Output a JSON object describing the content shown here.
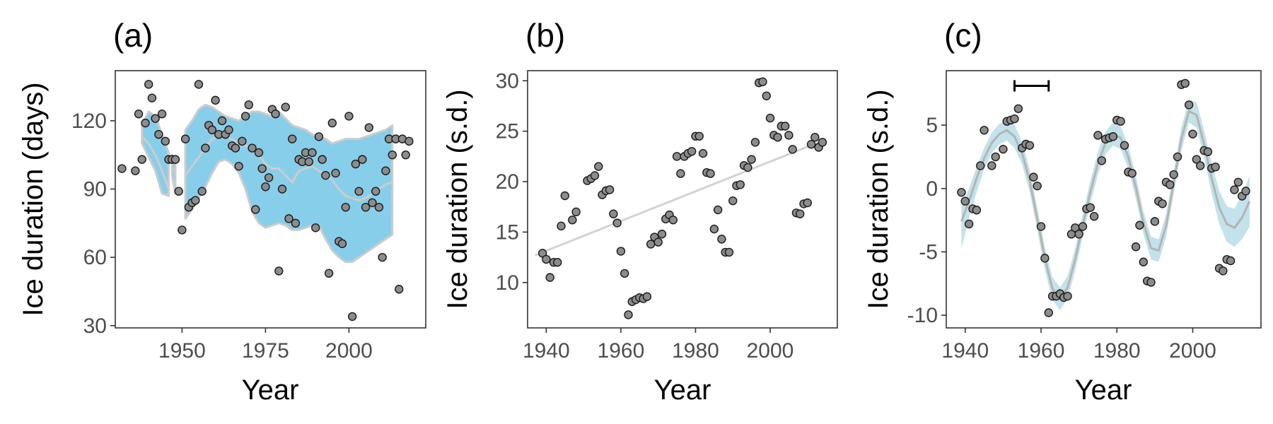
{
  "chart_data": [
    {
      "type": "scatter",
      "panel_label": "(a)",
      "xlabel": "Year",
      "ylabel": "Ice duration (days)",
      "xlim": [
        1930,
        2023
      ],
      "ylim": [
        29,
        142
      ],
      "x_ticks": [
        1950,
        1975,
        2000
      ],
      "y_ticks": [
        30,
        60,
        90,
        120
      ],
      "grid": false,
      "colors": {
        "points": "#8c8c8c",
        "band": "#87ceeb",
        "line": "#cccccc"
      },
      "points": [
        [
          1932,
          99
        ],
        [
          1936,
          98
        ],
        [
          1937,
          123
        ],
        [
          1938,
          103
        ],
        [
          1939,
          119
        ],
        [
          1940,
          136
        ],
        [
          1941,
          130
        ],
        [
          1942,
          121
        ],
        [
          1943,
          114
        ],
        [
          1944,
          123
        ],
        [
          1945,
          111
        ],
        [
          1946,
          103
        ],
        [
          1947,
          103
        ],
        [
          1948,
          103
        ],
        [
          1949,
          89
        ],
        [
          1950,
          72
        ],
        [
          1951,
          112
        ],
        [
          1952,
          82
        ],
        [
          1953,
          84
        ],
        [
          1954,
          85
        ],
        [
          1955,
          136
        ],
        [
          1956,
          89
        ],
        [
          1957,
          108
        ],
        [
          1958,
          118
        ],
        [
          1959,
          116
        ],
        [
          1960,
          129
        ],
        [
          1961,
          114
        ],
        [
          1962,
          120
        ],
        [
          1963,
          114
        ],
        [
          1964,
          116
        ],
        [
          1965,
          109
        ],
        [
          1966,
          108
        ],
        [
          1967,
          100
        ],
        [
          1968,
          111
        ],
        [
          1969,
          122
        ],
        [
          1970,
          127
        ],
        [
          1971,
          108
        ],
        [
          1972,
          81
        ],
        [
          1973,
          106
        ],
        [
          1974,
          99
        ],
        [
          1975,
          91
        ],
        [
          1976,
          95
        ],
        [
          1977,
          125
        ],
        [
          1978,
          123
        ],
        [
          1979,
          54
        ],
        [
          1980,
          90
        ],
        [
          1981,
          126
        ],
        [
          1982,
          77
        ],
        [
          1983,
          112
        ],
        [
          1984,
          75
        ],
        [
          1985,
          103
        ],
        [
          1986,
          102
        ],
        [
          1987,
          106
        ],
        [
          1988,
          102
        ],
        [
          1989,
          106
        ],
        [
          1990,
          73
        ],
        [
          1991,
          113
        ],
        [
          1992,
          103
        ],
        [
          1993,
          96
        ],
        [
          1994,
          53
        ],
        [
          1995,
          119
        ],
        [
          1996,
          97
        ],
        [
          1997,
          67
        ],
        [
          1998,
          66
        ],
        [
          1999,
          82
        ],
        [
          2000,
          122
        ],
        [
          2001,
          34
        ],
        [
          2002,
          101
        ],
        [
          2003,
          89
        ],
        [
          2004,
          103
        ],
        [
          2005,
          82
        ],
        [
          2006,
          117
        ],
        [
          2007,
          84
        ],
        [
          2008,
          89
        ],
        [
          2009,
          82
        ],
        [
          2010,
          60
        ],
        [
          2011,
          98
        ],
        [
          2012,
          112
        ],
        [
          2013,
          105
        ],
        [
          2014,
          112
        ],
        [
          2015,
          46
        ],
        [
          2016,
          112
        ],
        [
          2017,
          105
        ],
        [
          2018,
          111
        ]
      ],
      "band_segments": [
        {
          "x": [
            1938,
            1940,
            1942,
            1944,
            1946
          ],
          "upper": [
            118,
            124,
            122,
            114,
            106
          ],
          "mid": [
            113,
            110,
            105,
            98,
            90
          ],
          "lower": [
            110,
            104,
            98,
            88,
            87
          ]
        },
        {
          "x": [
            1947,
            1948
          ],
          "upper": [
            105,
            103
          ],
          "mid": [
            99,
            98
          ],
          "lower": [
            96,
            88
          ]
        },
        {
          "x": [
            1951,
            1953,
            1955,
            1957,
            1959,
            1961,
            1963,
            1965,
            1967,
            1969,
            1971,
            1973,
            1975,
            1977,
            1979,
            1981,
            1983,
            1985,
            1987,
            1989,
            1991,
            1993,
            1995,
            1997,
            1999,
            2001,
            2003,
            2005,
            2007,
            2009,
            2011,
            2013
          ],
          "upper": [
            116,
            120,
            125,
            127,
            126,
            124,
            122,
            121,
            120,
            122,
            124,
            124,
            123,
            122,
            124,
            121,
            118,
            117,
            116,
            114,
            113,
            112,
            110,
            111,
            112,
            112,
            112,
            113,
            114,
            115,
            116,
            118
          ],
          "mid": [
            96,
            100,
            104,
            108,
            112,
            113,
            113,
            112,
            110,
            109,
            108,
            105,
            101,
            99,
            99,
            96,
            93,
            98,
            99,
            100,
            98,
            96,
            94,
            90,
            87,
            86,
            85,
            86,
            88,
            90,
            92,
            93
          ],
          "lower": [
            77,
            81,
            86,
            91,
            97,
            102,
            103,
            101,
            97,
            90,
            80,
            75,
            73,
            74,
            75,
            74,
            72,
            72,
            73,
            74,
            74,
            68,
            63,
            60,
            58,
            58,
            60,
            62,
            64,
            66,
            68,
            70
          ]
        }
      ]
    },
    {
      "type": "scatter",
      "panel_label": "(b)",
      "xlabel": "Year",
      "ylabel": "Ice duration (s.d.)",
      "xlim": [
        1935,
        2018
      ],
      "ylim": [
        5.5,
        31
      ],
      "x_ticks": [
        1940,
        1960,
        1980,
        2000
      ],
      "y_ticks": [
        10,
        15,
        20,
        25,
        30
      ],
      "grid": false,
      "colors": {
        "points": "#8c8c8c",
        "line": "#d3d3d3"
      },
      "trend_line": {
        "x": [
          1937,
          2015
        ],
        "y": [
          12.7,
          24.2
        ]
      },
      "points": [
        [
          1939,
          12.9
        ],
        [
          1940,
          12.3
        ],
        [
          1941,
          10.5
        ],
        [
          1942,
          12.0
        ],
        [
          1943,
          12.0
        ],
        [
          1944,
          15.6
        ],
        [
          1945,
          18.6
        ],
        [
          1947,
          16.2
        ],
        [
          1948,
          17.0
        ],
        [
          1951,
          20.1
        ],
        [
          1952,
          20.3
        ],
        [
          1953,
          20.6
        ],
        [
          1954,
          21.5
        ],
        [
          1955,
          18.7
        ],
        [
          1956,
          19.1
        ],
        [
          1957,
          19.2
        ],
        [
          1958,
          16.8
        ],
        [
          1959,
          15.9
        ],
        [
          1960,
          13.1
        ],
        [
          1961,
          10.9
        ],
        [
          1962,
          6.8
        ],
        [
          1963,
          8.1
        ],
        [
          1964,
          8.3
        ],
        [
          1965,
          8.5
        ],
        [
          1966,
          8.4
        ],
        [
          1967,
          8.6
        ],
        [
          1968,
          13.8
        ],
        [
          1969,
          14.5
        ],
        [
          1970,
          14.0
        ],
        [
          1971,
          14.8
        ],
        [
          1972,
          16.3
        ],
        [
          1973,
          16.7
        ],
        [
          1974,
          16.2
        ],
        [
          1975,
          22.5
        ],
        [
          1976,
          20.8
        ],
        [
          1977,
          22.5
        ],
        [
          1978,
          22.8
        ],
        [
          1979,
          23.0
        ],
        [
          1980,
          24.5
        ],
        [
          1981,
          24.5
        ],
        [
          1982,
          22.8
        ],
        [
          1983,
          20.9
        ],
        [
          1984,
          20.8
        ],
        [
          1985,
          15.3
        ],
        [
          1986,
          17.2
        ],
        [
          1987,
          14.3
        ],
        [
          1988,
          13.0
        ],
        [
          1989,
          13.0
        ],
        [
          1990,
          18.1
        ],
        [
          1991,
          19.6
        ],
        [
          1992,
          19.7
        ],
        [
          1993,
          21.6
        ],
        [
          1994,
          21.4
        ],
        [
          1995,
          22.2
        ],
        [
          1996,
          23.9
        ],
        [
          1997,
          29.8
        ],
        [
          1998,
          29.9
        ],
        [
          1999,
          28.5
        ],
        [
          2000,
          26.3
        ],
        [
          2001,
          24.6
        ],
        [
          2002,
          24.4
        ],
        [
          2003,
          25.5
        ],
        [
          2004,
          25.5
        ],
        [
          2005,
          24.6
        ],
        [
          2006,
          23.2
        ],
        [
          2007,
          16.9
        ],
        [
          2008,
          16.8
        ],
        [
          2009,
          17.8
        ],
        [
          2010,
          17.9
        ],
        [
          2011,
          23.7
        ],
        [
          2012,
          24.4
        ],
        [
          2013,
          23.4
        ],
        [
          2014,
          23.9
        ]
      ]
    },
    {
      "type": "scatter",
      "panel_label": "(c)",
      "xlabel": "Year",
      "ylabel": "Ice duration (s.d.)",
      "xlim": [
        1935,
        2018
      ],
      "ylim": [
        -11,
        9.3
      ],
      "x_ticks": [
        1940,
        1960,
        1980,
        2000
      ],
      "y_ticks": [
        -10,
        -5,
        0,
        5
      ],
      "grid": false,
      "colors": {
        "points": "#8c8c8c",
        "band": "#add8e6",
        "line": "#b4b4b4",
        "errorbar": "#000000"
      },
      "interval_bar": {
        "x_start": 1953,
        "x_end": 1962,
        "y": 8.1
      },
      "fit_curve": {
        "x": [
          1939,
          1941,
          1943,
          1945,
          1947,
          1949,
          1951,
          1953,
          1955,
          1957,
          1959,
          1961,
          1963,
          1965,
          1967,
          1969,
          1971,
          1973,
          1975,
          1977,
          1979,
          1981,
          1983,
          1985,
          1987,
          1989,
          1991,
          1993,
          1995,
          1997,
          1999,
          2001,
          2003,
          2005,
          2007,
          2009,
          2011,
          2013,
          2015
        ],
        "y": [
          -2.6,
          -1.0,
          0.8,
          2.4,
          3.6,
          4.3,
          4.6,
          4.1,
          2.8,
          0.6,
          -2.4,
          -5.5,
          -7.9,
          -8.7,
          -7.8,
          -5.6,
          -2.9,
          -0.3,
          2.0,
          3.6,
          4.3,
          4.0,
          2.5,
          0.1,
          -2.7,
          -4.7,
          -4.9,
          -2.9,
          0.5,
          3.9,
          6.1,
          5.8,
          3.5,
          0.8,
          -1.5,
          -2.8,
          -3.1,
          -2.3,
          -1.0
        ],
        "upper": [
          -1.5,
          0.0,
          1.7,
          3.2,
          4.4,
          5.1,
          5.4,
          5.0,
          3.7,
          1.5,
          -1.5,
          -4.6,
          -7.0,
          -7.8,
          -6.9,
          -4.7,
          -2.0,
          0.6,
          2.9,
          4.5,
          5.2,
          4.9,
          3.4,
          1.0,
          -1.8,
          -3.8,
          -4.0,
          -2.0,
          1.4,
          4.8,
          7.0,
          6.8,
          4.6,
          2.0,
          -0.2,
          -1.4,
          -1.6,
          -0.5,
          1.0
        ],
        "lower": [
          -4.8,
          -2.3,
          -0.3,
          1.5,
          2.8,
          3.5,
          3.8,
          3.2,
          1.9,
          -0.3,
          -3.3,
          -6.4,
          -8.8,
          -9.6,
          -8.7,
          -6.5,
          -3.8,
          -1.2,
          1.1,
          2.7,
          3.4,
          3.1,
          1.6,
          -0.8,
          -3.6,
          -5.6,
          -5.8,
          -3.8,
          -0.4,
          3.0,
          5.2,
          4.8,
          2.4,
          -0.4,
          -2.8,
          -4.2,
          -4.6,
          -4.0,
          -3.0
        ]
      },
      "points": [
        [
          1939,
          -0.3
        ],
        [
          1940,
          -1.0
        ],
        [
          1941,
          -2.8
        ],
        [
          1942,
          -1.6
        ],
        [
          1943,
          -1.7
        ],
        [
          1944,
          1.8
        ],
        [
          1945,
          4.6
        ],
        [
          1947,
          1.8
        ],
        [
          1948,
          2.5
        ],
        [
          1950,
          3.1
        ],
        [
          1951,
          5.3
        ],
        [
          1952,
          5.4
        ],
        [
          1953,
          5.5
        ],
        [
          1954,
          6.3
        ],
        [
          1955,
          3.2
        ],
        [
          1956,
          3.5
        ],
        [
          1957,
          3.4
        ],
        [
          1958,
          0.9
        ],
        [
          1959,
          0.2
        ],
        [
          1960,
          -3.0
        ],
        [
          1961,
          -5.5
        ],
        [
          1962,
          -9.8
        ],
        [
          1963,
          -8.5
        ],
        [
          1964,
          -8.5
        ],
        [
          1965,
          -8.3
        ],
        [
          1966,
          -8.6
        ],
        [
          1967,
          -8.5
        ],
        [
          1968,
          -3.6
        ],
        [
          1969,
          -3.1
        ],
        [
          1970,
          -3.6
        ],
        [
          1971,
          -3.0
        ],
        [
          1972,
          -1.6
        ],
        [
          1973,
          -1.5
        ],
        [
          1974,
          -2.2
        ],
        [
          1975,
          4.2
        ],
        [
          1976,
          2.2
        ],
        [
          1977,
          3.9
        ],
        [
          1978,
          4.0
        ],
        [
          1979,
          4.1
        ],
        [
          1980,
          5.4
        ],
        [
          1981,
          5.3
        ],
        [
          1982,
          3.4
        ],
        [
          1983,
          1.3
        ],
        [
          1984,
          1.2
        ],
        [
          1985,
          -4.6
        ],
        [
          1986,
          -2.9
        ],
        [
          1987,
          -5.8
        ],
        [
          1988,
          -7.3
        ],
        [
          1989,
          -7.4
        ],
        [
          1990,
          -2.6
        ],
        [
          1991,
          -1.0
        ],
        [
          1992,
          -1.2
        ],
        [
          1993,
          0.5
        ],
        [
          1994,
          0.3
        ],
        [
          1995,
          1.1
        ],
        [
          1996,
          2.5
        ],
        [
          1997,
          8.2
        ],
        [
          1998,
          8.3
        ],
        [
          1999,
          6.6
        ],
        [
          2000,
          4.3
        ],
        [
          2001,
          2.3
        ],
        [
          2002,
          1.8
        ],
        [
          2003,
          3.0
        ],
        [
          2004,
          2.9
        ],
        [
          2005,
          1.6
        ],
        [
          2006,
          1.7
        ],
        [
          2007,
          -6.3
        ],
        [
          2008,
          -6.5
        ],
        [
          2009,
          -5.6
        ],
        [
          2010,
          -5.7
        ],
        [
          2011,
          -0.1
        ],
        [
          2012,
          0.5
        ],
        [
          2013,
          -0.6
        ],
        [
          2014,
          -0.2
        ]
      ]
    }
  ]
}
